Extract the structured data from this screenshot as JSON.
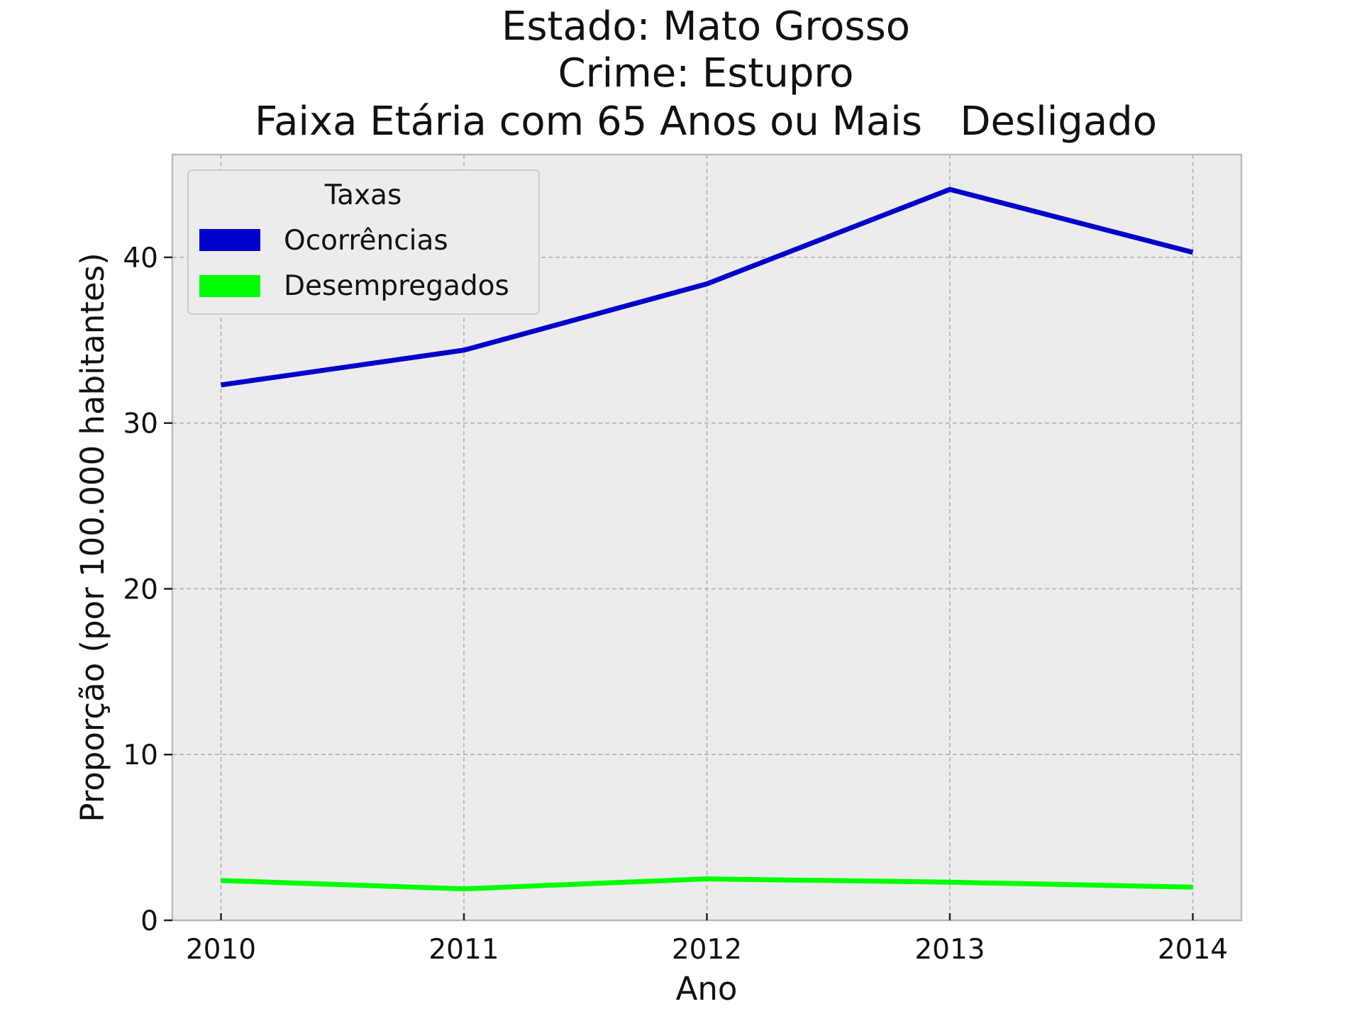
{
  "chart_data": {
    "type": "line",
    "title_lines": [
      "Estado: Mato Grosso",
      "Crime: Estupro",
      "Faixa Etária com 65 Anos ou Mais   Desligado"
    ],
    "xlabel": "Ano",
    "ylabel": "Proporção (por 100.000 habitantes)",
    "x": [
      2010,
      2011,
      2012,
      2013,
      2014
    ],
    "x_tick_labels": [
      "2010",
      "2011",
      "2012",
      "2013",
      "2014"
    ],
    "xlim": [
      2009.8,
      2014.2
    ],
    "y_ticks": [
      0,
      10,
      20,
      30,
      40
    ],
    "y_tick_labels": [
      "0",
      "10",
      "20",
      "30",
      "40"
    ],
    "ylim": [
      0,
      46.2
    ],
    "grid": true,
    "legend": {
      "title": "Taxas",
      "placement": "upper left"
    },
    "series": [
      {
        "name": "Ocorrências",
        "color": "#0000cc",
        "values": [
          32.3,
          34.4,
          38.4,
          44.1,
          40.3
        ]
      },
      {
        "name": "Desempregados",
        "color": "#00ff00",
        "values": [
          2.4,
          1.9,
          2.5,
          2.3,
          2.0
        ]
      }
    ],
    "background": "#ececec",
    "grid_color": "#b0b0b0"
  }
}
